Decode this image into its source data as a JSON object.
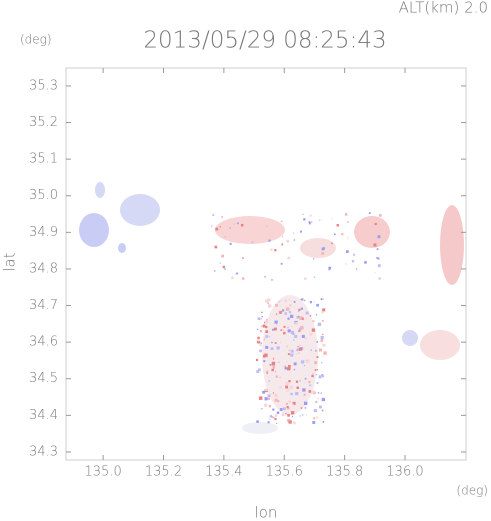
{
  "chart_data": {
    "type": "radar-map",
    "title": "2013/05/29 08:25:43",
    "altitude_label": "ALT(km) 2.0",
    "y_unit": "(deg)",
    "x_unit": "(deg)",
    "xlabel": "lon",
    "ylabel": "lat",
    "xlim": [
      134.877,
      136.202
    ],
    "ylim": [
      34.278,
      35.349
    ],
    "xticks": [
      {
        "value": 135,
        "label": "135.0"
      },
      135.2,
      135.4,
      135.6,
      135.8,
      {
        "value": 136,
        "label": "136.0"
      }
    ],
    "yticks": [
      35.3,
      35.2,
      35.1,
      {
        "value": 35,
        "label": "35.0"
      },
      34.9,
      34.8,
      34.7,
      34.6,
      34.5,
      34.4,
      34.3
    ]
  }
}
